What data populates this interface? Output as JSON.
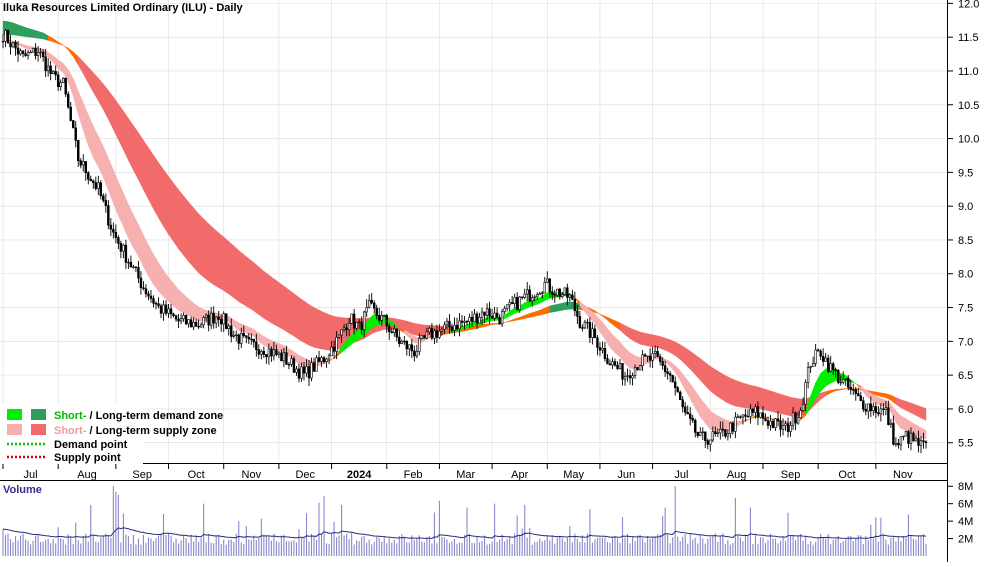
{
  "chart_data": {
    "type": "candlestick",
    "title": "Iluka Resources Limited Ordinary (ILU) - Daily",
    "price_axis": {
      "ylim": [
        5.2,
        12.05
      ],
      "ticks": [
        5.5,
        6.0,
        6.5,
        7.0,
        7.5,
        8.0,
        8.5,
        9.0,
        9.5,
        10.0,
        10.5,
        11.0,
        11.5,
        12.0
      ],
      "tick_labels": [
        "5.5",
        "6.0",
        "6.5",
        "7.0",
        "7.5",
        "8.0",
        "8.5",
        "9.0",
        "9.5",
        "10.0",
        "10.5",
        "11.0",
        "11.5",
        "12.0"
      ]
    },
    "months": [
      "Jul",
      "Aug",
      "Sep",
      "Oct",
      "Nov",
      "Dec",
      "2024",
      "Feb",
      "Mar",
      "Apr",
      "May",
      "Jun",
      "Jul",
      "Aug",
      "Sep",
      "Oct",
      "Nov"
    ],
    "month_start_index": [
      0,
      22,
      45,
      66,
      88,
      110,
      131,
      153,
      174,
      195,
      217,
      238,
      259,
      282,
      303,
      325,
      348
    ],
    "price_path": {
      "index": [
        0,
        8,
        14,
        20,
        24,
        30,
        38,
        44,
        50,
        56,
        62,
        70,
        78,
        86,
        92,
        98,
        104,
        112,
        120,
        128,
        134,
        138,
        142,
        146,
        152,
        158,
        164,
        170,
        174,
        180,
        186,
        192,
        198,
        204,
        210,
        216,
        220,
        226,
        230,
        236,
        242,
        248,
        254,
        260,
        266,
        272,
        278,
        286,
        294,
        300,
        306,
        312,
        318,
        322,
        326,
        330,
        336,
        342,
        348,
        352,
        356,
        360,
        366
      ],
      "close": [
        11.55,
        11.2,
        11.3,
        10.9,
        10.8,
        9.7,
        9.25,
        8.6,
        8.2,
        7.8,
        7.5,
        7.3,
        7.25,
        7.4,
        7.1,
        6.95,
        6.9,
        6.75,
        6.5,
        6.75,
        7.05,
        7.35,
        7.2,
        7.5,
        7.3,
        7.0,
        6.85,
        7.1,
        7.15,
        7.25,
        7.3,
        7.45,
        7.35,
        7.55,
        7.7,
        7.85,
        7.75,
        7.65,
        7.3,
        7.05,
        6.7,
        6.5,
        6.7,
        6.75,
        6.5,
        5.9,
        5.55,
        5.6,
        5.85,
        5.95,
        5.8,
        5.7,
        6.0,
        6.7,
        6.85,
        6.6,
        6.35,
        6.1,
        6.0,
        5.95,
        5.45,
        5.6,
        5.45
      ]
    },
    "series": [
      {
        "name": "Short-term demand zone",
        "color": "#00ee00"
      },
      {
        "name": "Long-term demand zone",
        "color": "#2e9e5e"
      },
      {
        "name": "Short-term supply zone",
        "color": "#f7b0b0"
      },
      {
        "name": "Long-term supply zone",
        "color": "#f26b6b"
      }
    ],
    "legend": {
      "placement": "bottom-left",
      "zones": [
        {
          "a": "Short-",
          "sep": " / ",
          "b": "Long-term demand zone",
          "color_a": "#00ee00",
          "color_b": "#2e9e5e",
          "text_a": "#00b800",
          "text_b": "#000000"
        },
        {
          "a": "Short-",
          "sep": " / ",
          "b": "Long-term supply zone",
          "color_a": "#f7b0b0",
          "color_b": "#f26b6b",
          "text_a": "#f29a9a",
          "text_b": "#000000"
        }
      ],
      "points": [
        {
          "label": "Demand point",
          "color": "#00c800"
        },
        {
          "label": "Supply point",
          "color": "#e00000"
        }
      ]
    },
    "volume": {
      "label": "Volume",
      "ticks": [
        2000000,
        4000000,
        6000000,
        8000000
      ],
      "tick_labels": [
        "2M",
        "4M",
        "6M",
        "8M"
      ],
      "ylim": [
        0,
        8600000
      ]
    },
    "colors": {
      "candle": "#000000",
      "volume_bar": "#8888cc",
      "volume_avg": "#2a2a7a",
      "transition": "#ff6a00",
      "grid": "#dcdcdc"
    }
  }
}
